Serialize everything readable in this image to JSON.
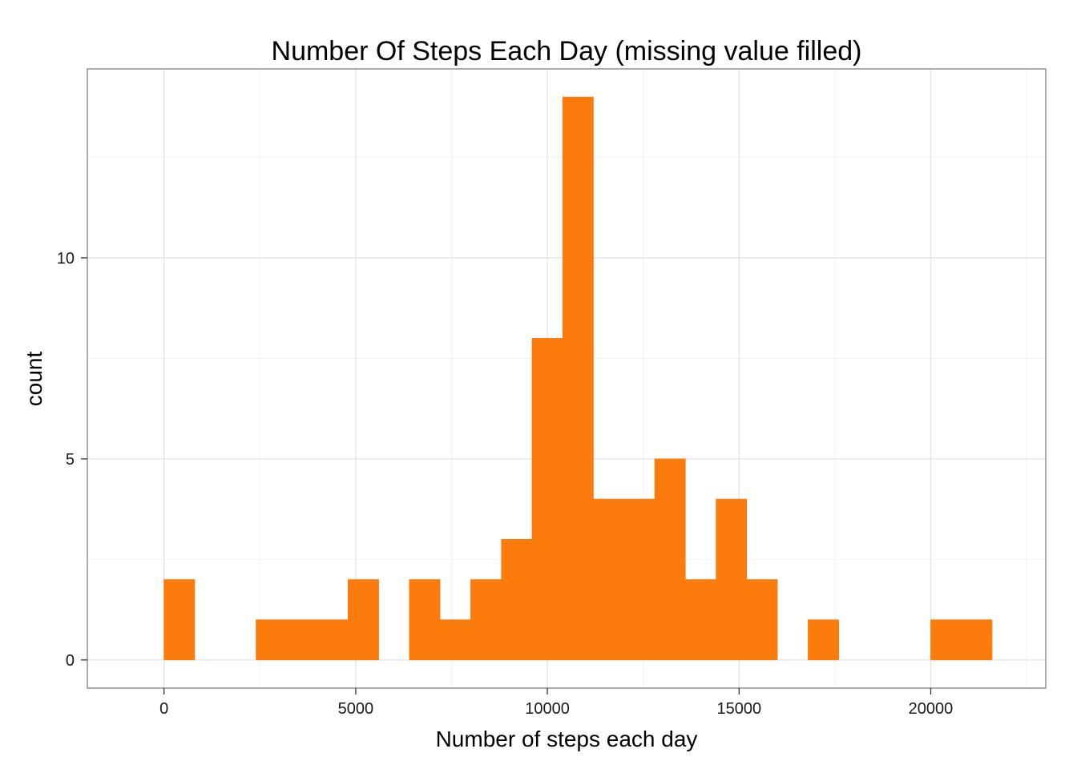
{
  "chart_data": {
    "type": "bar",
    "subtype": "histogram",
    "title": "Number Of Steps Each Day (missing value filled)",
    "xlabel": "Number of steps each day",
    "ylabel": "count",
    "xlim": [
      -2000,
      23000
    ],
    "ylim": [
      -0.7,
      14.7
    ],
    "binwidth": 800,
    "x_ticks": [
      0,
      5000,
      10000,
      15000,
      20000
    ],
    "x_tick_labels": [
      "0",
      "5000",
      "10000",
      "15000",
      "20000"
    ],
    "y_ticks": [
      0,
      5,
      10
    ],
    "y_tick_labels": [
      "0",
      "5",
      "10"
    ],
    "grid": true,
    "bar_color": "#FB7C0C",
    "bins": [
      {
        "start": 0,
        "end": 800,
        "count": 2
      },
      {
        "start": 800,
        "end": 1600,
        "count": 0
      },
      {
        "start": 1600,
        "end": 2400,
        "count": 0
      },
      {
        "start": 2400,
        "end": 3200,
        "count": 1
      },
      {
        "start": 3200,
        "end": 4000,
        "count": 1
      },
      {
        "start": 4000,
        "end": 4800,
        "count": 1
      },
      {
        "start": 4800,
        "end": 5600,
        "count": 2
      },
      {
        "start": 5600,
        "end": 6400,
        "count": 0
      },
      {
        "start": 6400,
        "end": 7200,
        "count": 2
      },
      {
        "start": 7200,
        "end": 8000,
        "count": 1
      },
      {
        "start": 8000,
        "end": 8800,
        "count": 2
      },
      {
        "start": 8800,
        "end": 9600,
        "count": 3
      },
      {
        "start": 9600,
        "end": 10400,
        "count": 8
      },
      {
        "start": 10400,
        "end": 11200,
        "count": 14
      },
      {
        "start": 11200,
        "end": 12000,
        "count": 4
      },
      {
        "start": 12000,
        "end": 12800,
        "count": 4
      },
      {
        "start": 12800,
        "end": 13600,
        "count": 5
      },
      {
        "start": 13600,
        "end": 14400,
        "count": 2
      },
      {
        "start": 14400,
        "end": 15200,
        "count": 4
      },
      {
        "start": 15200,
        "end": 16000,
        "count": 2
      },
      {
        "start": 16000,
        "end": 16800,
        "count": 0
      },
      {
        "start": 16800,
        "end": 17600,
        "count": 1
      },
      {
        "start": 17600,
        "end": 18400,
        "count": 0
      },
      {
        "start": 18400,
        "end": 19200,
        "count": 0
      },
      {
        "start": 19200,
        "end": 20000,
        "count": 0
      },
      {
        "start": 20000,
        "end": 20800,
        "count": 1
      },
      {
        "start": 20800,
        "end": 21600,
        "count": 1
      }
    ]
  }
}
